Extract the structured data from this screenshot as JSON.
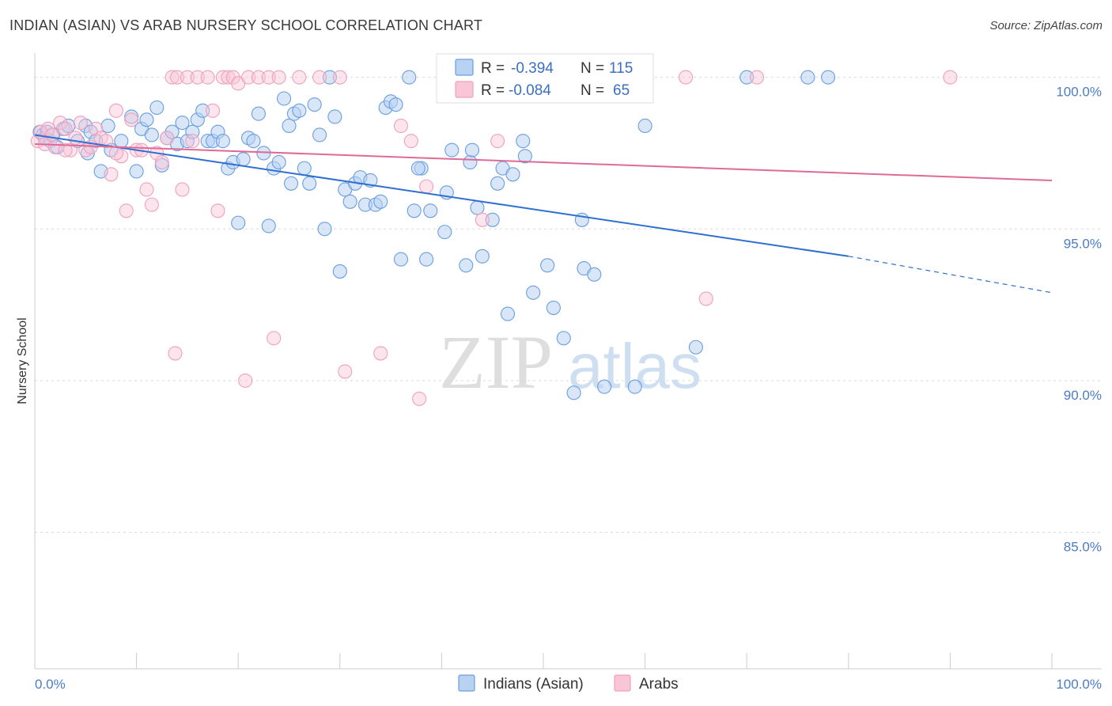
{
  "header": {
    "title": "INDIAN (ASIAN) VS ARAB NURSERY SCHOOL CORRELATION CHART",
    "source": "Source: ZipAtlas.com"
  },
  "watermark": {
    "zip": "ZIP",
    "atlas": "atlas"
  },
  "legend": {
    "rows": [
      {
        "r_label": "R =",
        "r_value": "-0.394",
        "n_label": "N =",
        "n_value": "115"
      },
      {
        "r_label": "R =",
        "r_value": "-0.084",
        "n_label": "N =",
        "n_value": "65"
      }
    ]
  },
  "chart_data": {
    "type": "scatter",
    "title": "INDIAN (ASIAN) VS ARAB NURSERY SCHOOL CORRELATION CHART",
    "xlabel": "",
    "ylabel": "Nursery School",
    "xlim": [
      0,
      100
    ],
    "ylim": [
      80.5,
      100.8
    ],
    "x_tick_labels": [
      "0.0%",
      "100.0%"
    ],
    "y_ticks": [
      85,
      90,
      95,
      100
    ],
    "y_tick_labels": [
      "85.0%",
      "90.0%",
      "95.0%",
      "100.0%"
    ],
    "grid": true,
    "legend_position": "top-center",
    "colors": {
      "indians": "#6a9ee0",
      "arabs": "#f0a0bc",
      "indians_line": "#2f6fd0",
      "arabs_line": "#e06a96"
    },
    "series": [
      {
        "name": "Indians (Asian)",
        "r": -0.394,
        "n": 115,
        "trend": {
          "x0": 0,
          "y0": 98.1,
          "x1": 80,
          "y1": 94.1,
          "dash_to_x": 100,
          "dash_to_y": 92.9
        },
        "points": [
          [
            0.5,
            98.2
          ],
          [
            0.8,
            98.1
          ],
          [
            1.0,
            98.0
          ],
          [
            1.2,
            98.2
          ],
          [
            1.5,
            97.9
          ],
          [
            1.8,
            98.1
          ],
          [
            2.2,
            97.7
          ],
          [
            2.8,
            98.3
          ],
          [
            3.3,
            98.4
          ],
          [
            4.2,
            97.9
          ],
          [
            5.0,
            98.4
          ],
          [
            5.2,
            97.5
          ],
          [
            5.5,
            98.2
          ],
          [
            6.0,
            97.9
          ],
          [
            6.5,
            96.9
          ],
          [
            7.2,
            98.4
          ],
          [
            7.5,
            97.6
          ],
          [
            8.5,
            97.9
          ],
          [
            9.5,
            98.7
          ],
          [
            10.0,
            96.9
          ],
          [
            10.5,
            98.3
          ],
          [
            11.5,
            98.1
          ],
          [
            12.0,
            99.0
          ],
          [
            12.5,
            97.1
          ],
          [
            13.0,
            98.0
          ],
          [
            13.5,
            98.2
          ],
          [
            14.0,
            97.8
          ],
          [
            14.5,
            98.5
          ],
          [
            15.0,
            97.9
          ],
          [
            15.5,
            98.2
          ],
          [
            16.0,
            98.6
          ],
          [
            16.5,
            98.9
          ],
          [
            17.0,
            97.9
          ],
          [
            17.5,
            97.9
          ],
          [
            18.0,
            98.2
          ],
          [
            18.5,
            97.9
          ],
          [
            19.0,
            97.0
          ],
          [
            19.5,
            97.2
          ],
          [
            20.0,
            95.2
          ],
          [
            20.5,
            97.3
          ],
          [
            21.0,
            98.0
          ],
          [
            21.5,
            97.9
          ],
          [
            22.0,
            98.8
          ],
          [
            22.5,
            97.5
          ],
          [
            23.0,
            95.1
          ],
          [
            23.5,
            97.0
          ],
          [
            24.0,
            97.2
          ],
          [
            24.5,
            99.3
          ],
          [
            25.0,
            98.4
          ],
          [
            25.5,
            98.8
          ],
          [
            26.0,
            98.9
          ],
          [
            26.5,
            97.0
          ],
          [
            27.0,
            96.5
          ],
          [
            27.5,
            99.1
          ],
          [
            28.0,
            98.1
          ],
          [
            28.5,
            95.0
          ],
          [
            29.0,
            100.0
          ],
          [
            29.5,
            98.7
          ],
          [
            30.0,
            93.6
          ],
          [
            30.5,
            96.3
          ],
          [
            31.0,
            95.9
          ],
          [
            31.5,
            96.5
          ],
          [
            32.0,
            96.7
          ],
          [
            32.5,
            95.8
          ],
          [
            33.0,
            96.6
          ],
          [
            33.5,
            95.8
          ],
          [
            34.0,
            95.9
          ],
          [
            34.5,
            99.0
          ],
          [
            35.0,
            99.2
          ],
          [
            35.5,
            99.1
          ],
          [
            36.0,
            94.0
          ],
          [
            36.8,
            100.0
          ],
          [
            37.3,
            95.6
          ],
          [
            38.0,
            97.0
          ],
          [
            38.5,
            94.0
          ],
          [
            38.9,
            95.6
          ],
          [
            40.5,
            96.2
          ],
          [
            40.3,
            94.9
          ],
          [
            42.4,
            93.8
          ],
          [
            42.8,
            97.2
          ],
          [
            43.0,
            97.6
          ],
          [
            43.5,
            95.7
          ],
          [
            44.0,
            94.1
          ],
          [
            45.0,
            95.3
          ],
          [
            45.5,
            96.5
          ],
          [
            46.0,
            97.0
          ],
          [
            46.5,
            92.2
          ],
          [
            47.0,
            96.8
          ],
          [
            48.0,
            97.9
          ],
          [
            48.2,
            97.4
          ],
          [
            49.0,
            92.9
          ],
          [
            50.4,
            93.8
          ],
          [
            51.0,
            92.4
          ],
          [
            52.0,
            91.4
          ],
          [
            53.0,
            89.6
          ],
          [
            54.0,
            93.7
          ],
          [
            53.8,
            95.3
          ],
          [
            55.0,
            93.5
          ],
          [
            56.0,
            89.8
          ],
          [
            57.0,
            100.0
          ],
          [
            59.0,
            89.8
          ],
          [
            60.0,
            98.4
          ],
          [
            65.0,
            91.1
          ],
          [
            70.0,
            100.0
          ],
          [
            76.0,
            100.0
          ],
          [
            78.0,
            100.0
          ],
          [
            41.0,
            97.6
          ],
          [
            37.7,
            97.0
          ],
          [
            25.2,
            96.5
          ],
          [
            11.0,
            98.6
          ]
        ]
      },
      {
        "name": "Arabs",
        "r": -0.084,
        "n": 65,
        "trend": {
          "x0": 0,
          "y0": 97.8,
          "x1": 100,
          "y1": 96.6
        },
        "points": [
          [
            0.3,
            97.9
          ],
          [
            0.6,
            98.2
          ],
          [
            1.0,
            97.8
          ],
          [
            1.3,
            98.3
          ],
          [
            1.7,
            98.1
          ],
          [
            2.0,
            97.7
          ],
          [
            2.5,
            98.5
          ],
          [
            3.0,
            98.3
          ],
          [
            3.5,
            97.6
          ],
          [
            4.0,
            98.0
          ],
          [
            4.5,
            98.5
          ],
          [
            5.0,
            97.6
          ],
          [
            5.5,
            97.7
          ],
          [
            6.0,
            98.3
          ],
          [
            6.5,
            98.0
          ],
          [
            7.0,
            97.9
          ],
          [
            7.5,
            96.8
          ],
          [
            8.0,
            98.9
          ],
          [
            8.5,
            97.4
          ],
          [
            9.0,
            95.6
          ],
          [
            9.5,
            98.6
          ],
          [
            10.0,
            97.6
          ],
          [
            10.5,
            97.6
          ],
          [
            11.0,
            96.3
          ],
          [
            11.5,
            95.8
          ],
          [
            12.0,
            97.5
          ],
          [
            12.5,
            97.2
          ],
          [
            13.0,
            98.0
          ],
          [
            13.5,
            100.0
          ],
          [
            14.0,
            100.0
          ],
          [
            14.5,
            96.3
          ],
          [
            15.0,
            100.0
          ],
          [
            15.5,
            97.9
          ],
          [
            16.0,
            100.0
          ],
          [
            17.0,
            100.0
          ],
          [
            17.5,
            98.9
          ],
          [
            18.0,
            95.6
          ],
          [
            18.5,
            100.0
          ],
          [
            19.0,
            100.0
          ],
          [
            19.5,
            100.0
          ],
          [
            20.0,
            99.8
          ],
          [
            21.0,
            100.0
          ],
          [
            22.0,
            100.0
          ],
          [
            23.0,
            100.0
          ],
          [
            24.0,
            100.0
          ],
          [
            26.0,
            100.0
          ],
          [
            28.0,
            100.0
          ],
          [
            30.0,
            100.0
          ],
          [
            13.8,
            90.9
          ],
          [
            20.7,
            90.0
          ],
          [
            23.5,
            91.4
          ],
          [
            30.5,
            90.3
          ],
          [
            34.0,
            90.9
          ],
          [
            36.0,
            98.4
          ],
          [
            37.0,
            97.9
          ],
          [
            37.8,
            89.4
          ],
          [
            38.5,
            96.4
          ],
          [
            44.0,
            95.3
          ],
          [
            45.5,
            97.9
          ],
          [
            64.0,
            100.0
          ],
          [
            66.0,
            92.7
          ],
          [
            71.0,
            100.0
          ],
          [
            90.0,
            100.0
          ],
          [
            3.0,
            97.6
          ],
          [
            8.0,
            97.5
          ]
        ]
      }
    ]
  },
  "bottom_legend": {
    "items": [
      {
        "label": "Indians (Asian)"
      },
      {
        "label": "Arabs"
      }
    ]
  },
  "axes": {
    "x_left_label": "0.0%",
    "x_right_label": "100.0%",
    "y_title": "Nursery School"
  }
}
